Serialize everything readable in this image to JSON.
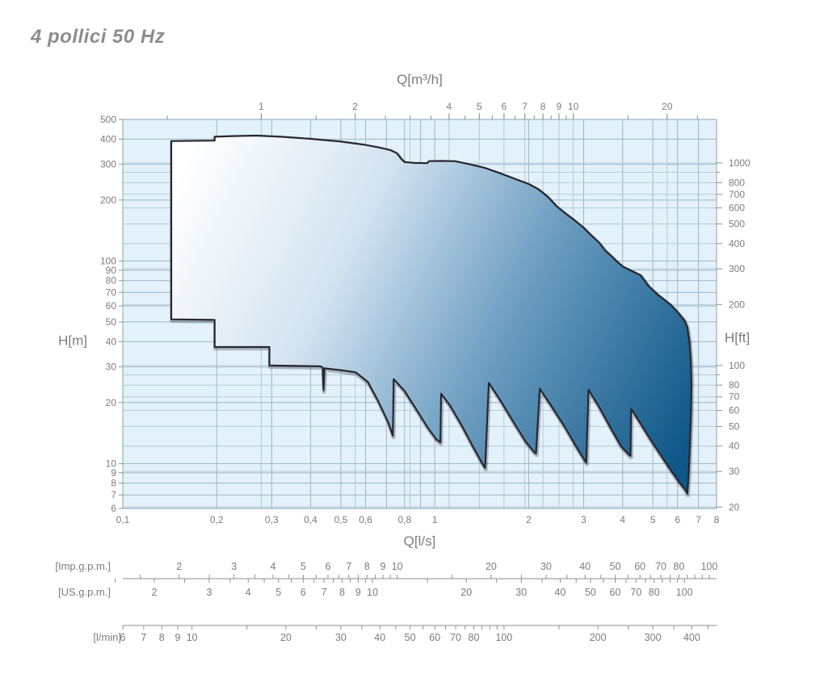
{
  "title": "4 pollici 50 Hz",
  "colors": {
    "plot_bg": "#e3f1fa",
    "grid_metric": "#9db6c6",
    "grid_imperial": "#b5cad7",
    "frame": "#8aa3b4",
    "outline": "#26262e",
    "outline_shadow": "rgba(30,30,50,0.28)",
    "gradient_stops": [
      "#ffffff",
      "#d3e3f0",
      "#6f9fc2",
      "#0f5788"
    ],
    "tick_color": "#8f8f8f",
    "text": "#7c7c7c",
    "title_text": "#8d8d8d"
  },
  "chart_data": {
    "type": "area",
    "title": "4 pollici 50 Hz",
    "description": "Pump family coverage envelope, head H versus flow Q, log-log scales",
    "x_scale": "log",
    "y_scale": "log",
    "x_range_ls": [
      0.1,
      8
    ],
    "y_range_m": [
      6,
      500
    ],
    "axes": {
      "top": {
        "title": "Q[m³/h]",
        "unit": "m3/h",
        "ls_per_unit": 0.277778,
        "labels": [
          1,
          2,
          4,
          5,
          6,
          7,
          8,
          9,
          10,
          20
        ],
        "ticks": [
          0.5,
          1,
          1.5,
          2,
          2.5,
          3,
          3.5,
          4,
          4.5,
          5,
          5.5,
          6,
          6.5,
          7,
          7.5,
          8,
          8.5,
          9,
          9.5,
          10,
          15,
          20,
          25
        ]
      },
      "bottom": {
        "title": "Q[l/s]",
        "unit": "l/s",
        "labels": [
          {
            "v": 0.1,
            "t": "0,1"
          },
          {
            "v": 0.2,
            "t": "0,2"
          },
          {
            "v": 0.3,
            "t": "0,3"
          },
          {
            "v": 0.4,
            "t": "0,4"
          },
          {
            "v": 0.5,
            "t": "0,5"
          },
          {
            "v": 0.6,
            "t": "0,6"
          },
          {
            "v": 0.8,
            "t": "0,8"
          },
          {
            "v": 1,
            "t": "1"
          },
          {
            "v": 2,
            "t": "2"
          },
          {
            "v": 3,
            "t": "3"
          },
          {
            "v": 4,
            "t": "4"
          },
          {
            "v": 5,
            "t": "5"
          },
          {
            "v": 6,
            "t": "6"
          },
          {
            "v": 7,
            "t": "7"
          },
          {
            "v": 8,
            "t": "8"
          }
        ]
      },
      "left": {
        "title": "H[m]",
        "unit": "m",
        "labels": [
          500,
          400,
          300,
          200,
          100,
          90,
          80,
          70,
          60,
          50,
          40,
          30,
          20,
          10,
          9,
          8,
          7,
          6
        ]
      },
      "right": {
        "title": "H[ft]",
        "unit": "ft",
        "m_per_unit": 0.3048,
        "labels": [
          1000,
          800,
          700,
          600,
          500,
          400,
          300,
          200,
          100,
          80,
          70,
          60,
          50,
          40,
          30,
          20
        ],
        "extra_ticks": [
          900,
          90
        ]
      }
    },
    "grid": {
      "vertical_ls": [
        0.1,
        0.2,
        0.3,
        0.4,
        0.5,
        0.6,
        0.7,
        0.8,
        0.9,
        1,
        2,
        3,
        4,
        5,
        6,
        7,
        8
      ],
      "vertical_m3h": [
        1,
        2,
        3,
        4,
        5,
        6,
        7,
        8,
        9,
        10,
        20
      ],
      "horizontal_m": [
        6,
        7,
        8,
        9,
        10,
        20,
        30,
        40,
        50,
        60,
        70,
        80,
        90,
        100,
        200,
        300,
        400,
        500
      ],
      "horizontal_ft": [
        20,
        30,
        40,
        50,
        60,
        70,
        80,
        90,
        100,
        200,
        300,
        400,
        500,
        600,
        700,
        800,
        900,
        1000
      ]
    },
    "secondary_scales": [
      {
        "name": "imp_gpm",
        "label": "[Imp.g.p.m.]",
        "ls_per_unit": 0.0757682,
        "side": "above",
        "labels": [
          2,
          3,
          4,
          5,
          6,
          7,
          8,
          9,
          10,
          20,
          30,
          40,
          50,
          60,
          70,
          80,
          100
        ],
        "ticks": [
          1.5,
          2,
          2.5,
          3,
          3.5,
          4,
          4.5,
          5,
          5.5,
          6,
          6.5,
          7,
          7.5,
          8,
          8.5,
          9,
          9.5,
          10,
          15,
          20,
          25,
          30,
          35,
          40,
          45,
          50,
          55,
          60,
          65,
          70,
          75,
          80,
          85,
          90,
          95,
          100
        ]
      },
      {
        "name": "us_gpm",
        "label": "[US.g.p.m.]",
        "ls_per_unit": 0.0630902,
        "side": "below",
        "labels": [
          2,
          3,
          4,
          5,
          6,
          7,
          8,
          9,
          10,
          20,
          30,
          40,
          50,
          60,
          70,
          80,
          100
        ],
        "ticks": [
          1.5,
          2,
          2.5,
          3,
          3.5,
          4,
          4.5,
          5,
          5.5,
          6,
          6.5,
          7,
          7.5,
          8,
          8.5,
          9,
          9.5,
          10,
          15,
          20,
          25,
          30,
          35,
          40,
          45,
          50,
          55,
          60,
          65,
          70,
          75,
          80,
          85,
          90,
          95,
          100
        ]
      },
      {
        "name": "l_min",
        "label": "[l/min]",
        "ls_per_unit": 0.0166667,
        "side": "line_below",
        "labels": [
          6,
          7,
          8,
          9,
          10,
          20,
          30,
          40,
          50,
          60,
          70,
          80,
          100,
          200,
          300,
          400
        ],
        "ticks": [
          6,
          7,
          8,
          9,
          10,
          15,
          20,
          25,
          30,
          35,
          40,
          45,
          50,
          55,
          60,
          65,
          70,
          75,
          80,
          85,
          90,
          95,
          100,
          150,
          200,
          250,
          300,
          350,
          400,
          450
        ]
      }
    ],
    "envelope": {
      "upper_QH": [
        [
          0.143,
          391
        ],
        [
          0.197,
          393
        ],
        [
          0.197,
          411
        ],
        [
          0.225,
          414
        ],
        [
          0.268,
          416
        ],
        [
          0.32,
          411
        ],
        [
          0.4,
          401
        ],
        [
          0.5,
          389
        ],
        [
          0.59,
          376
        ],
        [
          0.66,
          364
        ],
        [
          0.72,
          353
        ],
        [
          0.755,
          341
        ],
        [
          0.78,
          320
        ],
        [
          0.8,
          308
        ],
        [
          0.86,
          305
        ],
        [
          0.945,
          304
        ],
        [
          0.958,
          311
        ],
        [
          1.05,
          312
        ],
        [
          1.16,
          311
        ],
        [
          1.3,
          300
        ],
        [
          1.45,
          288
        ],
        [
          1.62,
          271
        ],
        [
          1.8,
          255
        ],
        [
          2.0,
          240
        ],
        [
          2.15,
          226
        ],
        [
          2.3,
          208
        ],
        [
          2.46,
          186
        ],
        [
          2.62,
          172
        ],
        [
          2.79,
          160
        ],
        [
          3.0,
          146
        ],
        [
          3.14,
          136
        ],
        [
          3.35,
          124
        ],
        [
          3.53,
          112
        ],
        [
          3.7,
          105
        ],
        [
          3.82,
          100
        ],
        [
          4.0,
          94
        ],
        [
          4.3,
          89
        ],
        [
          4.57,
          85
        ],
        [
          4.85,
          75
        ],
        [
          5.2,
          68
        ],
        [
          5.69,
          61
        ],
        [
          6.0,
          56
        ],
        [
          6.31,
          51
        ],
        [
          6.45,
          47
        ],
        [
          6.55,
          40
        ],
        [
          6.62,
          32
        ],
        [
          6.65,
          25
        ],
        [
          6.63,
          18
        ],
        [
          6.57,
          12
        ],
        [
          6.5,
          8.4
        ],
        [
          6.45,
          7.1
        ]
      ],
      "lower_QH": [
        [
          0.143,
          51.5
        ],
        [
          0.197,
          51.2
        ],
        [
          0.197,
          37.6
        ],
        [
          0.295,
          37.6
        ],
        [
          0.295,
          30.5
        ],
        [
          0.43,
          30.2
        ],
        [
          0.437,
          29.8
        ],
        [
          0.44,
          23.0
        ],
        [
          0.443,
          29.5
        ],
        [
          0.5,
          28.9
        ],
        [
          0.557,
          28.2
        ],
        [
          0.61,
          25.3
        ],
        [
          0.66,
          20.2
        ],
        [
          0.71,
          15.9
        ],
        [
          0.734,
          13.7
        ],
        [
          0.738,
          26.1
        ],
        [
          0.8,
          22.8
        ],
        [
          0.87,
          18.6
        ],
        [
          0.95,
          15.0
        ],
        [
          1.01,
          13.2
        ],
        [
          1.042,
          12.7
        ],
        [
          1.048,
          22.1
        ],
        [
          1.12,
          19.3
        ],
        [
          1.22,
          15.4
        ],
        [
          1.33,
          12.0
        ],
        [
          1.42,
          10.0
        ],
        [
          1.45,
          9.5
        ],
        [
          1.49,
          25.0
        ],
        [
          1.62,
          20.6
        ],
        [
          1.78,
          16.2
        ],
        [
          1.95,
          12.9
        ],
        [
          2.08,
          11.4
        ],
        [
          2.11,
          11.2
        ],
        [
          2.17,
          23.4
        ],
        [
          2.35,
          19.5
        ],
        [
          2.6,
          15.3
        ],
        [
          2.85,
          12.0
        ],
        [
          3.03,
          10.3
        ],
        [
          3.06,
          10.1
        ],
        [
          3.11,
          23.1
        ],
        [
          3.35,
          19.2
        ],
        [
          3.65,
          15.1
        ],
        [
          3.95,
          12.2
        ],
        [
          4.2,
          11.0
        ],
        [
          4.24,
          10.9
        ],
        [
          4.26,
          18.6
        ],
        [
          4.55,
          15.9
        ],
        [
          4.9,
          13.2
        ],
        [
          5.3,
          11.0
        ],
        [
          5.7,
          9.3
        ],
        [
          6.1,
          8.0
        ],
        [
          6.35,
          7.4
        ],
        [
          6.45,
          7.1
        ]
      ]
    }
  }
}
